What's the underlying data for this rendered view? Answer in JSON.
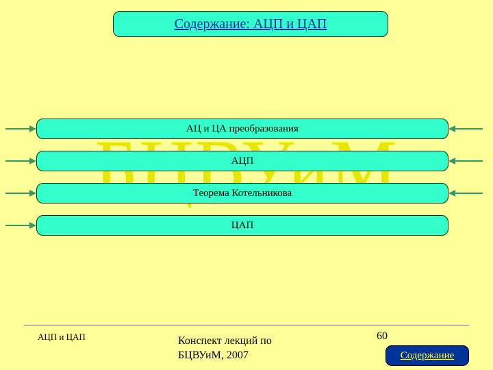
{
  "background_color": "#ffff99",
  "watermark": {
    "text": "БЦВУиМ",
    "color": "#e6e600"
  },
  "title": {
    "text": "Содержание: АЦП и ЦАП",
    "bg_color": "#33ffcc",
    "text_color": "#003399",
    "border_color": "#003300"
  },
  "menu": {
    "item_bg": "#33ffcc",
    "item_border": "#003300",
    "connector_color": "#339966",
    "items": [
      {
        "label": "АЦ и ЦА преобразования",
        "has_right_connector": true
      },
      {
        "label": "АЦП",
        "has_right_connector": true
      },
      {
        "label": "Теорема Котельникова",
        "has_right_connector": true
      },
      {
        "label": "ЦАП",
        "has_right_connector": false
      }
    ]
  },
  "footer": {
    "left_text": "АЦП и ЦАП",
    "center_text": "Конспект лекций по БЦВУиМ, 2007",
    "page_number": "60",
    "button_label": "Содержание",
    "button_bg": "#003399",
    "button_text_color": "#ffff66"
  }
}
